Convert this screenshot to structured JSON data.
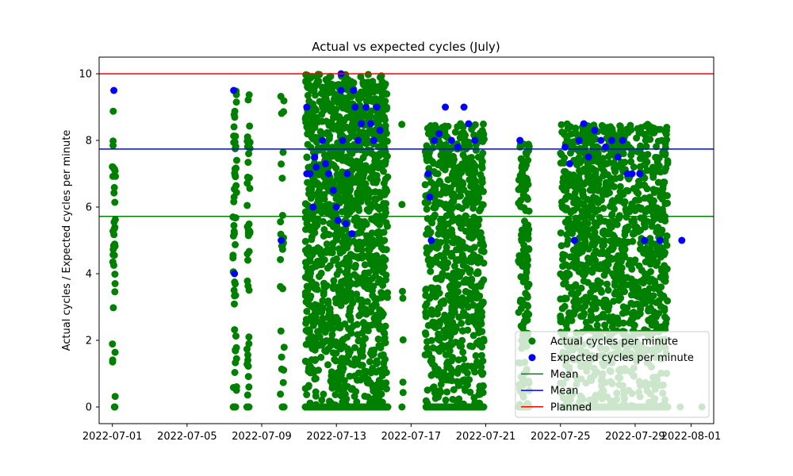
{
  "chart_data": {
    "type": "scatter",
    "title": "Actual vs expected cycles (July)",
    "xlabel": "",
    "ylabel": "Actual cycles / Expected cycles per minute",
    "x_range": [
      "2022-06-30",
      "2022-08-02"
    ],
    "xlim": [
      "2022-06-30T07:00",
      "2022-08-02T05:00"
    ],
    "x_ticks": [
      "2022-07-01",
      "2022-07-05",
      "2022-07-09",
      "2022-07-13",
      "2022-07-17",
      "2022-07-21",
      "2022-07-25",
      "2022-07-29",
      "2022-08-01"
    ],
    "ylim": [
      -0.5,
      10.5
    ],
    "y_ticks": [
      0,
      2,
      4,
      6,
      8,
      10
    ],
    "grid": false,
    "legend_position": "lower right",
    "series": [
      {
        "name": "Actual cycles per minute",
        "color": "#008000",
        "marker": "circle",
        "bands": [
          {
            "start": "2022-07-01T00:00",
            "end": "2022-07-01T04:00",
            "y_min": 0,
            "y_max": 9.5,
            "points": 40
          },
          {
            "start": "2022-07-07T11:00",
            "end": "2022-07-07T16:00",
            "y_min": 0,
            "y_max": 9.5,
            "points": 60
          },
          {
            "start": "2022-07-08T05:00",
            "end": "2022-07-08T09:00",
            "y_min": 0,
            "y_max": 9.5,
            "points": 50
          },
          {
            "start": "2022-07-10T00:00",
            "end": "2022-07-10T05:00",
            "y_min": 0,
            "y_max": 9.5,
            "points": 30
          },
          {
            "start": "2022-07-11T08:00",
            "end": "2022-07-15T18:00",
            "y_min": 0,
            "y_max": 10,
            "points": 1600
          },
          {
            "start": "2022-07-16T12:00",
            "end": "2022-07-16T14:00",
            "y_min": 0,
            "y_max": 8.5,
            "points": 8
          },
          {
            "start": "2022-07-17T18:00",
            "end": "2022-07-20T22:00",
            "y_min": 0,
            "y_max": 8.5,
            "points": 900
          },
          {
            "start": "2022-07-22T18:00",
            "end": "2022-07-23T08:00",
            "y_min": 0,
            "y_max": 8,
            "points": 180
          },
          {
            "start": "2022-07-25T00:00",
            "end": "2022-07-30T18:00",
            "y_min": 0,
            "y_max": 8.5,
            "points": 1500
          },
          {
            "start": "2022-07-31T08:00",
            "end": "2022-07-31T10:00",
            "y_min": 0,
            "y_max": 0,
            "points": 1
          },
          {
            "start": "2022-08-01T12:00",
            "end": "2022-08-01T14:00",
            "y_min": 0,
            "y_max": 0,
            "points": 1
          }
        ]
      },
      {
        "name": "Expected cycles per minute",
        "color": "#0000ff",
        "marker": "circle",
        "points": [
          [
            "2022-07-01T02:00",
            9.5
          ],
          [
            "2022-07-07T12:00",
            9.5
          ],
          [
            "2022-07-07T13:00",
            4
          ],
          [
            "2022-07-10T01:00",
            5
          ],
          [
            "2022-07-11T10:00",
            9
          ],
          [
            "2022-07-11T10:00",
            7
          ],
          [
            "2022-07-11T14:00",
            7
          ],
          [
            "2022-07-11T18:00",
            6
          ],
          [
            "2022-07-11T20:00",
            7.5
          ],
          [
            "2022-07-11T22:00",
            7.2
          ],
          [
            "2022-07-12T06:00",
            8
          ],
          [
            "2022-07-12T10:00",
            7.3
          ],
          [
            "2022-07-12T14:00",
            7
          ],
          [
            "2022-07-12T20:00",
            6.5
          ],
          [
            "2022-07-13T00:00",
            6
          ],
          [
            "2022-07-13T02:00",
            5.6
          ],
          [
            "2022-07-13T06:00",
            10
          ],
          [
            "2022-07-13T06:00",
            9.5
          ],
          [
            "2022-07-13T08:00",
            8
          ],
          [
            "2022-07-13T12:00",
            5.5
          ],
          [
            "2022-07-13T14:00",
            7
          ],
          [
            "2022-07-13T20:00",
            5.2
          ],
          [
            "2022-07-13T22:00",
            9.5
          ],
          [
            "2022-07-14T00:00",
            9
          ],
          [
            "2022-07-14T04:00",
            8
          ],
          [
            "2022-07-14T08:00",
            8.5
          ],
          [
            "2022-07-14T14:00",
            9
          ],
          [
            "2022-07-14T20:00",
            8.5
          ],
          [
            "2022-07-15T00:00",
            8
          ],
          [
            "2022-07-15T04:00",
            9
          ],
          [
            "2022-07-15T08:00",
            8.3
          ],
          [
            "2022-07-17T22:00",
            7
          ],
          [
            "2022-07-18T00:00",
            6.3
          ],
          [
            "2022-07-18T02:00",
            5
          ],
          [
            "2022-07-18T06:00",
            8
          ],
          [
            "2022-07-18T12:00",
            8.2
          ],
          [
            "2022-07-18T20:00",
            9
          ],
          [
            "2022-07-19T04:00",
            8
          ],
          [
            "2022-07-19T12:00",
            7.8
          ],
          [
            "2022-07-19T20:00",
            9
          ],
          [
            "2022-07-20T02:00",
            8.5
          ],
          [
            "2022-07-20T10:00",
            8
          ],
          [
            "2022-07-22T20:00",
            8
          ],
          [
            "2022-07-25T06:00",
            7.8
          ],
          [
            "2022-07-25T12:00",
            7.3
          ],
          [
            "2022-07-25T18:00",
            5
          ],
          [
            "2022-07-26T00:00",
            8
          ],
          [
            "2022-07-26T06:00",
            8.5
          ],
          [
            "2022-07-26T12:00",
            7.5
          ],
          [
            "2022-07-26T20:00",
            8.3
          ],
          [
            "2022-07-27T04:00",
            8
          ],
          [
            "2022-07-27T10:00",
            7.8
          ],
          [
            "2022-07-27T18:00",
            8
          ],
          [
            "2022-07-28T02:00",
            7.5
          ],
          [
            "2022-07-28T08:00",
            8
          ],
          [
            "2022-07-28T14:00",
            7
          ],
          [
            "2022-07-28T20:00",
            7
          ],
          [
            "2022-07-29T06:00",
            7
          ],
          [
            "2022-07-29T12:00",
            5
          ],
          [
            "2022-07-30T08:00",
            5
          ],
          [
            "2022-07-31T12:00",
            5
          ]
        ]
      }
    ],
    "hlines": [
      {
        "name": "Mean",
        "y": 5.72,
        "color": "#008000"
      },
      {
        "name": "Mean",
        "y": 7.74,
        "color": "#0000ff"
      },
      {
        "name": "Planned",
        "y": 10,
        "color": "#ff0000"
      }
    ]
  }
}
